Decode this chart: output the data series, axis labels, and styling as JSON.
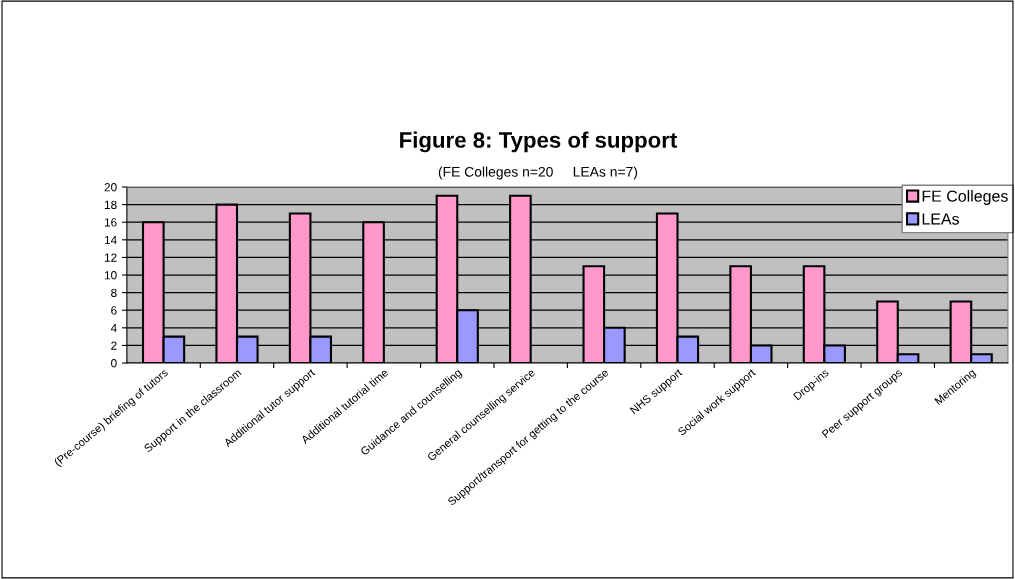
{
  "chart_data": {
    "type": "bar",
    "title": "Figure 8: Types of support",
    "subtitle": "(FE Colleges n=20     LEAs n=7)",
    "categories": [
      "(Pre-course) briefing of tutors",
      "Support in the classroom",
      "Additional tutor support",
      "Additional tutorial time",
      "Guidance and counselling",
      "General counselling service",
      "Support/transport for getting to the course",
      "NHS support",
      "Social work support",
      "Drop-ins",
      "Peer support groups",
      "Mentoring"
    ],
    "series": [
      {
        "name": "FE Colleges",
        "color": "#ff99cc",
        "values": [
          16,
          18,
          17,
          16,
          19,
          19,
          11,
          17,
          11,
          11,
          7,
          7
        ]
      },
      {
        "name": "LEAs",
        "color": "#9999ff",
        "values": [
          3,
          3,
          3,
          null,
          6,
          null,
          4,
          3,
          2,
          2,
          1,
          1
        ]
      }
    ],
    "ylim": [
      0,
      20
    ],
    "yticks": [
      0,
      2,
      4,
      6,
      8,
      10,
      12,
      14,
      16,
      18,
      20
    ],
    "grid": "y",
    "legend": "top right"
  }
}
